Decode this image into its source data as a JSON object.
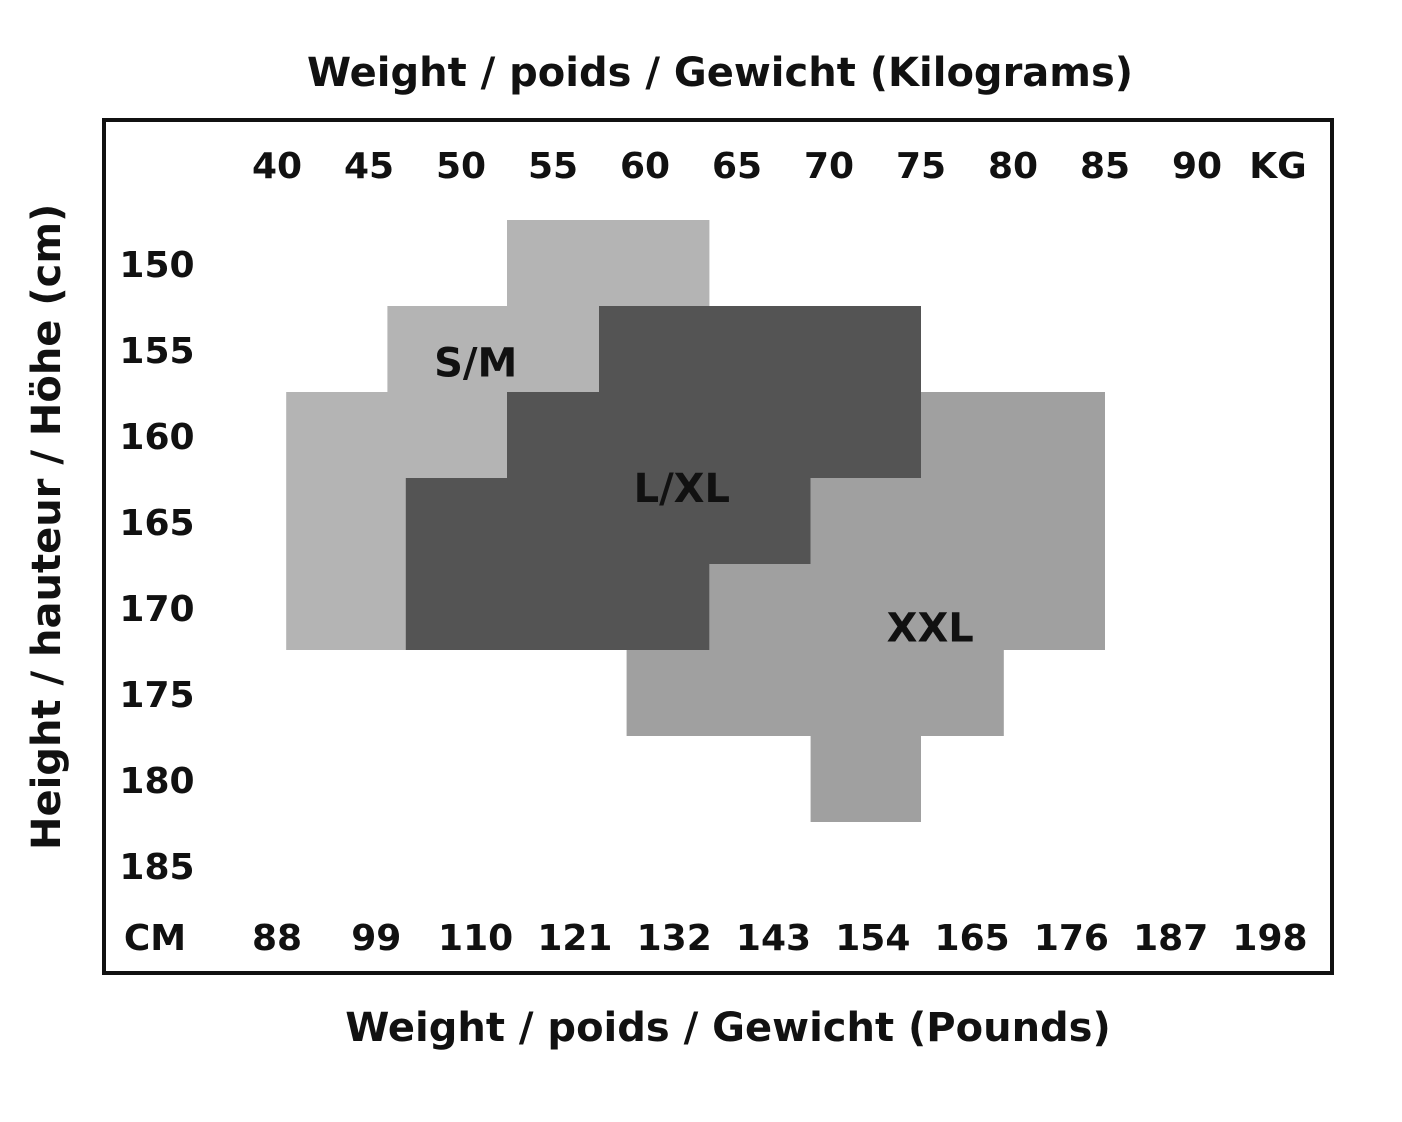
{
  "chart_data": {
    "type": "heatmap",
    "title_top": "Weight / poids / Gewicht (Kilograms)",
    "title_bottom": "Weight / poids / Gewicht (Pounds)",
    "ylabel": "Height / hauteur / Höhe (cm)",
    "kg_unit": "KG",
    "cm_unit": "CM",
    "kg_ticks": [
      "40",
      "45",
      "50",
      "55",
      "60",
      "65",
      "70",
      "75",
      "80",
      "85",
      "90"
    ],
    "lb_ticks": [
      "88",
      "99",
      "110",
      "121",
      "132",
      "143",
      "154",
      "165",
      "176",
      "187",
      "198"
    ],
    "height_ticks": [
      "150",
      "155",
      "160",
      "165",
      "170",
      "175",
      "180",
      "185"
    ],
    "zones": [
      {
        "name": "S/M",
        "color": "#b4b4b4",
        "cells_kg_cm": [
          {
            "kg": [
              52.5,
              63.5
            ],
            "cm": [
              150,
              150
            ]
          },
          {
            "kg": [
              46,
              63.5
            ],
            "cm": [
              155,
              155
            ]
          },
          {
            "kg": [
              40.5,
              63.5
            ],
            "cm": [
              160,
              160
            ]
          },
          {
            "kg": [
              40.5,
              48
            ],
            "cm": [
              165,
              170
            ]
          }
        ]
      },
      {
        "name": "XXL",
        "color": "#a0a0a0",
        "cells_kg_cm": [
          {
            "kg": [
              74.5,
              85
            ],
            "cm": [
              160,
              160
            ]
          },
          {
            "kg": [
              69,
              85
            ],
            "cm": [
              165,
              165
            ]
          },
          {
            "kg": [
              63.5,
              85
            ],
            "cm": [
              170,
              170
            ]
          },
          {
            "kg": [
              59,
              79.5
            ],
            "cm": [
              175,
              175
            ]
          },
          {
            "kg": [
              69,
              75
            ],
            "cm": [
              180,
              180
            ]
          }
        ]
      },
      {
        "name": "L/XL",
        "color": "#545454",
        "cells_kg_cm": [
          {
            "kg": [
              57.5,
              75
            ],
            "cm": [
              155,
              155
            ]
          },
          {
            "kg": [
              52.5,
              75
            ],
            "cm": [
              160,
              160
            ]
          },
          {
            "kg": [
              47,
              69
            ],
            "cm": [
              165,
              165
            ]
          },
          {
            "kg": [
              47,
              63.5
            ],
            "cm": [
              170,
              170
            ]
          }
        ]
      }
    ]
  }
}
